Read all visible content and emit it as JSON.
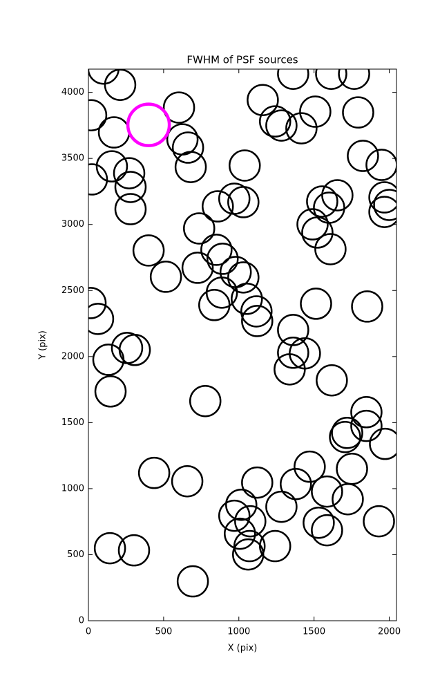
{
  "chart_data": {
    "type": "scatter",
    "title": "FWHM of PSF sources",
    "xlabel": "X (pix)",
    "ylabel": "Y (pix)",
    "xlim": [
      0,
      2048
    ],
    "ylim": [
      0,
      4176
    ],
    "xticks": [
      0,
      500,
      1000,
      1500,
      2000
    ],
    "yticks": [
      0,
      500,
      1000,
      1500,
      2000,
      2500,
      3000,
      3500,
      4000
    ],
    "series": [
      {
        "color": "#000000",
        "x": [
          100,
          211,
          18,
          170,
          602,
          625,
          662,
          680,
          156,
          23,
          271,
          280,
          280,
          400,
          736,
          515,
          726,
          851,
          892,
          979,
          1030,
          887,
          837,
          1053,
          1117,
          1122,
          860,
          970,
          1030,
          1039,
          1159,
          1241,
          1283,
          1416,
          1361,
          1508,
          1614,
          1766,
          1793,
          1825,
          1949,
          1968,
          2000,
          1968,
          1655,
          1554,
          1600,
          1490,
          1522,
          1609,
          14,
          64,
          1513,
          1853,
          1361,
          1361,
          1439,
          1338,
          1618,
          257,
          308,
          133,
          147,
          777,
          1848,
          1848,
          1720,
          1706,
          1972,
          1471,
          1752,
          1586,
          1724,
          1379,
          1122,
          1283,
          1016,
          970,
          1076,
          1531,
          1586,
          1931,
          1007,
          1071,
          1062,
          1241,
          437,
          657,
          143,
          303,
          694
        ],
        "y": [
          4180,
          4057,
          3827,
          3697,
          3885,
          3644,
          3582,
          3435,
          3440,
          3341,
          3388,
          3284,
          3116,
          2803,
          2970,
          2604,
          2672,
          2808,
          2740,
          2640,
          2599,
          2484,
          2390,
          2437,
          2342,
          2269,
          3137,
          3195,
          3169,
          3446,
          3942,
          3780,
          3749,
          3728,
          4141,
          3854,
          4141,
          4141,
          3848,
          3519,
          3451,
          3205,
          3148,
          3095,
          3221,
          3174,
          3127,
          3001,
          2939,
          2813,
          2405,
          2285,
          2400,
          2379,
          2201,
          2029,
          2024,
          1903,
          1820,
          2065,
          2050,
          1976,
          1736,
          1663,
          1579,
          1475,
          1422,
          1391,
          1339,
          1166,
          1150,
          978,
          920,
          1035,
          1046,
          863,
          878,
          795,
          753,
          742,
          685,
          753,
          659,
          565,
          502,
          565,
          1119,
          1056,
          549,
          533,
          298
        ]
      },
      {
        "color": "#ff00ff",
        "x": [
          400
        ],
        "y": [
          3754
        ]
      }
    ]
  }
}
